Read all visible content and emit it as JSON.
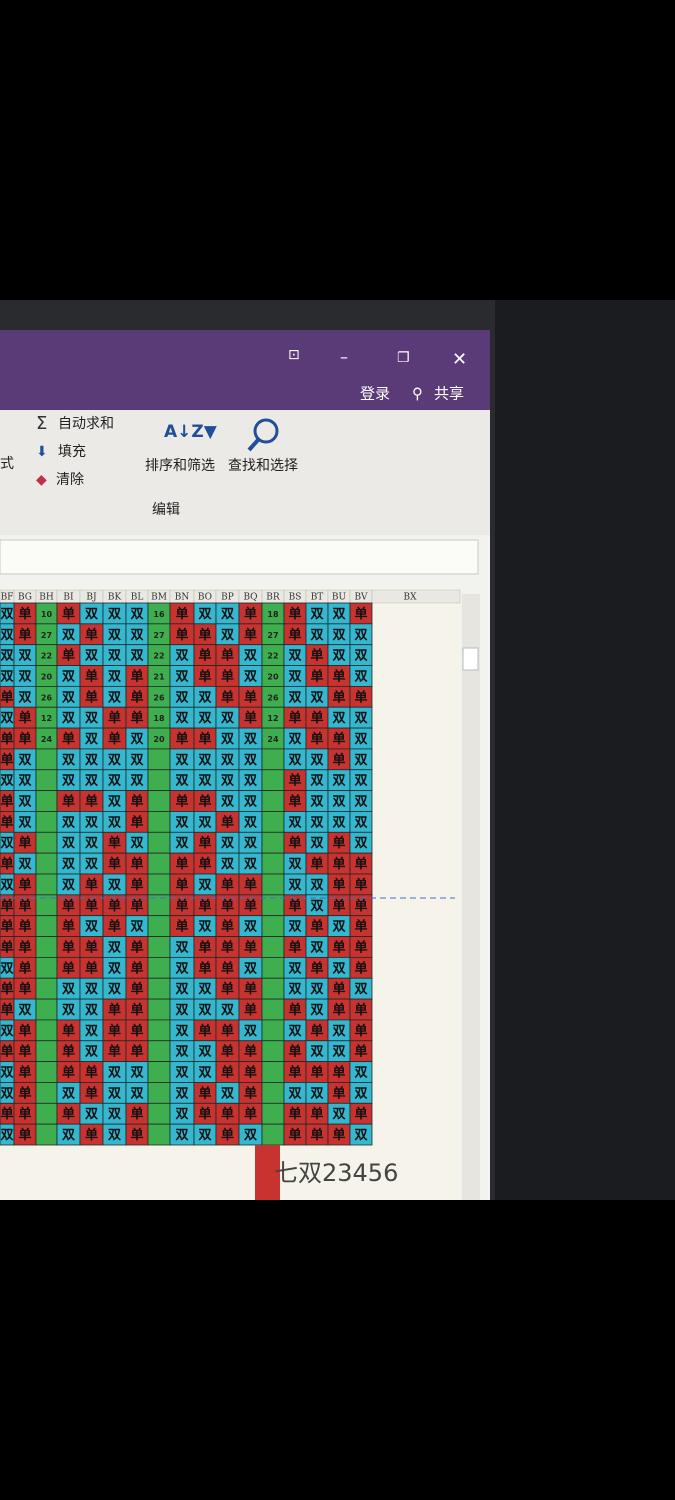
{
  "window": {
    "login": "登录",
    "share": "共享"
  },
  "ribbon": {
    "format_fragment": "式",
    "autosum": "自动求和",
    "fill": "填充",
    "clear": "清除",
    "sort_filter": "排序和筛选",
    "find_select": "查找和选择",
    "group_label": "编辑"
  },
  "sheet": {
    "columns": [
      "BF",
      "BG",
      "BH",
      "BI",
      "BJ",
      "BK",
      "BL",
      "BM",
      "BN",
      "BO",
      "BP",
      "BQ",
      "BR",
      "BS",
      "BT",
      "BU",
      "BV"
    ],
    "extra_column": "BX",
    "rows": [
      [
        "双",
        "单",
        10,
        "单",
        "双",
        "双",
        "双",
        16,
        "单",
        "双",
        "双",
        "单",
        18,
        "单",
        "双",
        "双",
        "单"
      ],
      [
        "双",
        "单",
        27,
        "双",
        "单",
        "双",
        "双",
        27,
        "单",
        "单",
        "双",
        "单",
        27,
        "单",
        "双",
        "双",
        "双"
      ],
      [
        "双",
        "双",
        22,
        "单",
        "双",
        "双",
        "双",
        22,
        "双",
        "单",
        "单",
        "双",
        22,
        "双",
        "单",
        "双",
        "双"
      ],
      [
        "双",
        "双",
        20,
        "双",
        "单",
        "双",
        "单",
        21,
        "双",
        "单",
        "单",
        "双",
        20,
        "双",
        "单",
        "单",
        "双"
      ],
      [
        "单",
        "双",
        26,
        "双",
        "单",
        "双",
        "单",
        26,
        "双",
        "双",
        "单",
        "单",
        26,
        "双",
        "双",
        "单",
        "单"
      ],
      [
        "双",
        "单",
        12,
        "双",
        "双",
        "单",
        "单",
        18,
        "双",
        "双",
        "双",
        "单",
        12,
        "单",
        "单",
        "双",
        "双"
      ],
      [
        "单",
        "单",
        24,
        "单",
        "双",
        "单",
        "双",
        20,
        "单",
        "单",
        "双",
        "双",
        24,
        "双",
        "单",
        "单",
        "双"
      ],
      [
        "单",
        "双",
        null,
        "双",
        "双",
        "双",
        "双",
        null,
        "双",
        "双",
        "双",
        "双",
        null,
        "双",
        "双",
        "单",
        "双"
      ],
      [
        "双",
        "双",
        null,
        "双",
        "双",
        "双",
        "双",
        null,
        "双",
        "双",
        "双",
        "双",
        null,
        "单",
        "双",
        "双",
        "双"
      ],
      [
        "单",
        "双",
        null,
        "单",
        "单",
        "双",
        "单",
        null,
        "单",
        "单",
        "双",
        "双",
        null,
        "单",
        "双",
        "双",
        "双"
      ],
      [
        "单",
        "双",
        null,
        "双",
        "双",
        "双",
        "单",
        null,
        "双",
        "双",
        "单",
        "双",
        null,
        "双",
        "双",
        "双",
        "双"
      ],
      [
        "双",
        "单",
        null,
        "双",
        "双",
        "单",
        "双",
        null,
        "双",
        "单",
        "双",
        "双",
        null,
        "单",
        "双",
        "单",
        "双"
      ],
      [
        "单",
        "双",
        null,
        "双",
        "双",
        "单",
        "单",
        null,
        "单",
        "单",
        "双",
        "双",
        null,
        "双",
        "单",
        "单",
        "单"
      ],
      [
        "双",
        "单",
        null,
        "双",
        "单",
        "双",
        "单",
        null,
        "单",
        "双",
        "单",
        "单",
        null,
        "双",
        "双",
        "单",
        "单"
      ],
      [
        "单",
        "单",
        null,
        "单",
        "单",
        "单",
        "单",
        null,
        "单",
        "单",
        "单",
        "单",
        null,
        "单",
        "双",
        "单",
        "单"
      ],
      [
        "单",
        "单",
        null,
        "单",
        "双",
        "单",
        "双",
        null,
        "单",
        "双",
        "单",
        "双",
        null,
        "双",
        "单",
        "双",
        "单"
      ],
      [
        "单",
        "单",
        null,
        "单",
        "单",
        "双",
        "单",
        null,
        "双",
        "单",
        "单",
        "单",
        null,
        "单",
        "双",
        "单",
        "单"
      ],
      [
        "双",
        "单",
        null,
        "单",
        "单",
        "双",
        "单",
        null,
        "双",
        "单",
        "单",
        "双",
        null,
        "双",
        "单",
        "双",
        "单"
      ],
      [
        "单",
        "单",
        null,
        "双",
        "双",
        "双",
        "单",
        null,
        "双",
        "双",
        "单",
        "单",
        null,
        "双",
        "双",
        "单",
        "双"
      ],
      [
        "单",
        "双",
        null,
        "双",
        "双",
        "单",
        "单",
        null,
        "双",
        "双",
        "双",
        "单",
        null,
        "单",
        "双",
        "单",
        "单"
      ],
      [
        "双",
        "单",
        null,
        "单",
        "双",
        "单",
        "单",
        null,
        "双",
        "单",
        "单",
        "双",
        null,
        "双",
        "单",
        "双",
        "单"
      ],
      [
        "单",
        "单",
        null,
        "单",
        "双",
        "单",
        "单",
        null,
        "双",
        "双",
        "单",
        "单",
        null,
        "单",
        "双",
        "双",
        "单"
      ],
      [
        "双",
        "单",
        null,
        "单",
        "单",
        "双",
        "双",
        null,
        "双",
        "双",
        "单",
        "单",
        null,
        "单",
        "单",
        "单",
        "双"
      ],
      [
        "双",
        "单",
        null,
        "双",
        "单",
        "双",
        "双",
        null,
        "双",
        "单",
        "双",
        "单",
        null,
        "双",
        "双",
        "单",
        "双"
      ],
      [
        "单",
        "单",
        null,
        "单",
        "双",
        "双",
        "单",
        null,
        "双",
        "单",
        "单",
        "单",
        null,
        "单",
        "单",
        "双",
        "单"
      ],
      [
        "双",
        "单",
        null,
        "双",
        "单",
        "双",
        "单",
        null,
        "双",
        "双",
        "单",
        "双",
        null,
        "单",
        "单",
        "单",
        "双"
      ]
    ]
  },
  "caption": "七双23456"
}
